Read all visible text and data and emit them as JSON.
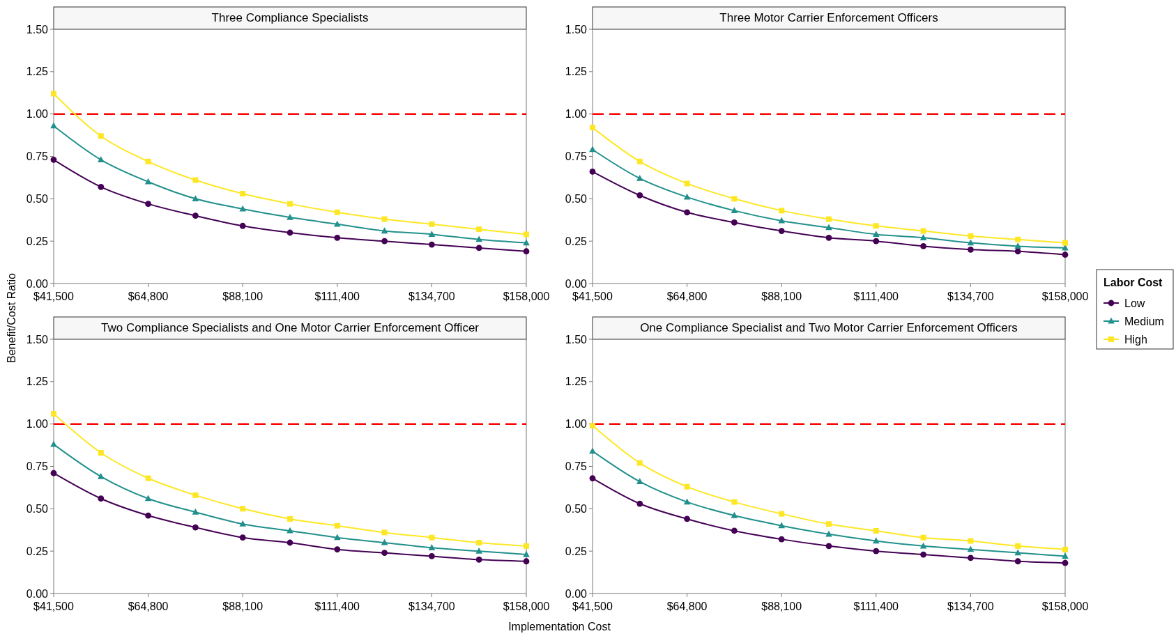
{
  "chart_data": [
    {
      "type": "line",
      "title": "Three Compliance Specialists",
      "ylabel": "Benefit/Cost Ratio",
      "x": [
        41500,
        53150,
        64800,
        76450,
        88100,
        99750,
        111400,
        123050,
        134700,
        146350,
        158000
      ],
      "xlim": [
        41500,
        158000
      ],
      "ylim": [
        0,
        1.5
      ],
      "xticks": [
        {
          "value": 41500,
          "label": "$41,500"
        },
        {
          "value": 64800,
          "label": "$64,800"
        },
        {
          "value": 88100,
          "label": "$88,100"
        },
        {
          "value": 111400,
          "label": "$111,400"
        },
        {
          "value": 134700,
          "label": "$134,700"
        },
        {
          "value": 158000,
          "label": "$158,000"
        }
      ],
      "yticks": [
        {
          "value": 0,
          "label": "0.00"
        },
        {
          "value": 0.25,
          "label": "0.25"
        },
        {
          "value": 0.5,
          "label": "0.50"
        },
        {
          "value": 0.75,
          "label": "0.75"
        },
        {
          "value": 1,
          "label": "1.00"
        },
        {
          "value": 1.25,
          "label": "1.25"
        },
        {
          "value": 1.5,
          "label": "1.50"
        }
      ],
      "grid": false,
      "legend": false,
      "ref_lines": [
        {
          "axis": "y",
          "value": 1,
          "color": "#ff0000",
          "line_style": "dashed"
        }
      ],
      "series": [
        {
          "color": "#440154",
          "marker": "circle",
          "values": [
            0.73,
            0.57,
            0.47,
            0.4,
            0.34,
            0.3,
            0.27,
            0.25,
            0.23,
            0.21,
            0.19
          ]
        },
        {
          "color": "#21908c",
          "marker": "triangle",
          "values": [
            0.93,
            0.73,
            0.6,
            0.5,
            0.44,
            0.39,
            0.35,
            0.31,
            0.29,
            0.26,
            0.24
          ]
        },
        {
          "color": "#fde725",
          "marker": "square",
          "values": [
            1.12,
            0.87,
            0.72,
            0.61,
            0.53,
            0.47,
            0.42,
            0.38,
            0.35,
            0.32,
            0.29
          ]
        }
      ]
    },
    {
      "type": "line",
      "title": "Three Motor Carrier Enforcement Officers",
      "legend_title": "Labor Cost",
      "x": [
        41500,
        53150,
        64800,
        76450,
        88100,
        99750,
        111400,
        123050,
        134700,
        146350,
        158000
      ],
      "xlim": [
        41500,
        158000
      ],
      "ylim": [
        0,
        1.5
      ],
      "xticks": [
        {
          "value": 41500,
          "label": "$41,500"
        },
        {
          "value": 64800,
          "label": "$64,800"
        },
        {
          "value": 88100,
          "label": "$88,100"
        },
        {
          "value": 111400,
          "label": "$111,400"
        },
        {
          "value": 134700,
          "label": "$134,700"
        },
        {
          "value": 158000,
          "label": "$158,000"
        }
      ],
      "yticks": [
        {
          "value": 0,
          "label": "0.00"
        },
        {
          "value": 0.25,
          "label": "0.25"
        },
        {
          "value": 0.5,
          "label": "0.50"
        },
        {
          "value": 0.75,
          "label": "0.75"
        },
        {
          "value": 1,
          "label": "1.00"
        },
        {
          "value": 1.25,
          "label": "1.25"
        },
        {
          "value": 1.5,
          "label": "1.50"
        }
      ],
      "grid": false,
      "legend": "right",
      "ref_lines": [
        {
          "axis": "y",
          "value": 1,
          "color": "#ff0000",
          "line_style": "dashed"
        }
      ],
      "series": [
        {
          "name": "Low",
          "color": "#440154",
          "marker": "circle",
          "values": [
            0.66,
            0.52,
            0.42,
            0.36,
            0.31,
            0.27,
            0.25,
            0.22,
            0.2,
            0.19,
            0.17
          ]
        },
        {
          "name": "Medium",
          "color": "#21908c",
          "marker": "triangle",
          "values": [
            0.79,
            0.62,
            0.51,
            0.43,
            0.37,
            0.33,
            0.29,
            0.27,
            0.24,
            0.22,
            0.21
          ]
        },
        {
          "name": "High",
          "color": "#fde725",
          "marker": "square",
          "values": [
            0.92,
            0.72,
            0.59,
            0.5,
            0.43,
            0.38,
            0.34,
            0.31,
            0.28,
            0.26,
            0.24
          ]
        }
      ]
    },
    {
      "type": "line",
      "title": "Two Compliance Specialists and One Motor Carrier Enforcement Officer",
      "xlabel": "Implementation Cost",
      "x": [
        41500,
        53150,
        64800,
        76450,
        88100,
        99750,
        111400,
        123050,
        134700,
        146350,
        158000
      ],
      "xlim": [
        41500,
        158000
      ],
      "ylim": [
        0,
        1.5
      ],
      "xticks": [
        {
          "value": 41500,
          "label": "$41,500"
        },
        {
          "value": 64800,
          "label": "$64,800"
        },
        {
          "value": 88100,
          "label": "$88,100"
        },
        {
          "value": 111400,
          "label": "$111,400"
        },
        {
          "value": 134700,
          "label": "$134,700"
        },
        {
          "value": 158000,
          "label": "$158,000"
        }
      ],
      "yticks": [
        {
          "value": 0,
          "label": "0.00"
        },
        {
          "value": 0.25,
          "label": "0.25"
        },
        {
          "value": 0.5,
          "label": "0.50"
        },
        {
          "value": 0.75,
          "label": "0.75"
        },
        {
          "value": 1,
          "label": "1.00"
        },
        {
          "value": 1.25,
          "label": "1.25"
        },
        {
          "value": 1.5,
          "label": "1.50"
        }
      ],
      "grid": false,
      "legend": false,
      "ref_lines": [
        {
          "axis": "y",
          "value": 1,
          "color": "#ff0000",
          "line_style": "dashed"
        }
      ],
      "series": [
        {
          "color": "#440154",
          "marker": "circle",
          "values": [
            0.71,
            0.56,
            0.46,
            0.39,
            0.33,
            0.3,
            0.26,
            0.24,
            0.22,
            0.2,
            0.19
          ]
        },
        {
          "color": "#21908c",
          "marker": "triangle",
          "values": [
            0.88,
            0.69,
            0.56,
            0.48,
            0.41,
            0.37,
            0.33,
            0.3,
            0.27,
            0.25,
            0.23
          ]
        },
        {
          "color": "#fde725",
          "marker": "square",
          "values": [
            1.06,
            0.83,
            0.68,
            0.58,
            0.5,
            0.44,
            0.4,
            0.36,
            0.33,
            0.3,
            0.28
          ]
        }
      ]
    },
    {
      "type": "line",
      "title": "One Compliance Specialist and Two Motor Carrier Enforcement Officers",
      "x": [
        41500,
        53150,
        64800,
        76450,
        88100,
        99750,
        111400,
        123050,
        134700,
        146350,
        158000
      ],
      "xlim": [
        41500,
        158000
      ],
      "ylim": [
        0,
        1.5
      ],
      "xticks": [
        {
          "value": 41500,
          "label": "$41,500"
        },
        {
          "value": 64800,
          "label": "$64,800"
        },
        {
          "value": 88100,
          "label": "$88,100"
        },
        {
          "value": 111400,
          "label": "$111,400"
        },
        {
          "value": 134700,
          "label": "$134,700"
        },
        {
          "value": 158000,
          "label": "$158,000"
        }
      ],
      "yticks": [
        {
          "value": 0,
          "label": "0.00"
        },
        {
          "value": 0.25,
          "label": "0.25"
        },
        {
          "value": 0.5,
          "label": "0.50"
        },
        {
          "value": 0.75,
          "label": "0.75"
        },
        {
          "value": 1,
          "label": "1.00"
        },
        {
          "value": 1.25,
          "label": "1.25"
        },
        {
          "value": 1.5,
          "label": "1.50"
        }
      ],
      "grid": false,
      "legend": false,
      "ref_lines": [
        {
          "axis": "y",
          "value": 1,
          "color": "#ff0000",
          "line_style": "dashed"
        }
      ],
      "series": [
        {
          "color": "#440154",
          "marker": "circle",
          "values": [
            0.68,
            0.53,
            0.44,
            0.37,
            0.32,
            0.28,
            0.25,
            0.23,
            0.21,
            0.19,
            0.18
          ]
        },
        {
          "color": "#21908c",
          "marker": "triangle",
          "values": [
            0.84,
            0.66,
            0.54,
            0.46,
            0.4,
            0.35,
            0.31,
            0.28,
            0.26,
            0.24,
            0.22
          ]
        },
        {
          "color": "#fde725",
          "marker": "square",
          "values": [
            0.99,
            0.77,
            0.63,
            0.54,
            0.47,
            0.41,
            0.37,
            0.33,
            0.31,
            0.28,
            0.26
          ]
        }
      ]
    }
  ]
}
